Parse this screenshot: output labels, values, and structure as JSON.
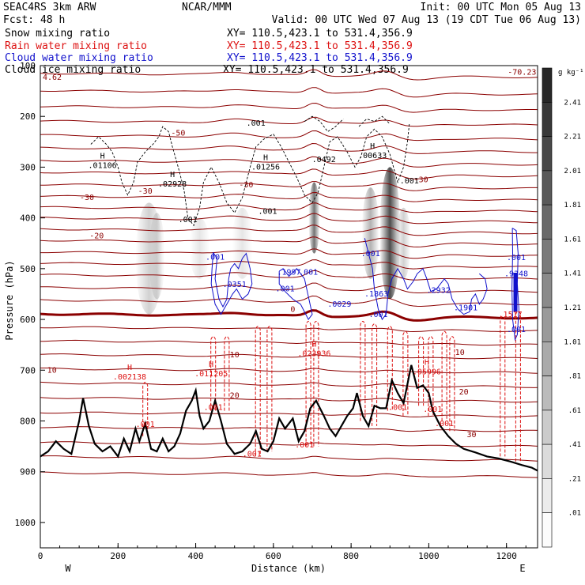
{
  "header": {
    "model": "SEAC4RS  3km ARW",
    "org": "NCAR/MMM",
    "init": "Init: 00 UTC Mon 05 Aug 13",
    "fcst": "Fcst:   48 h",
    "valid": "Valid: 00 UTC Wed 07 Aug 13 (19 CDT Tue 06 Aug 13)"
  },
  "fields": [
    {
      "name": "Snow mixing ratio",
      "xy": "XY= 110.5,423.1 to 531.4,356.9",
      "color": "#000000"
    },
    {
      "name": "Rain water mixing ratio",
      "xy": "XY= 110.5,423.1 to 531.4,356.9",
      "color": "#dd1111"
    },
    {
      "name": "Cloud water mixing ratio",
      "xy": "XY= 110.5,423.1 to 531.4,356.9",
      "color": "#1111cc"
    },
    {
      "name": "Cloud ice mixing ratio",
      "xy": "XY= 110.5,423.1 to 531.4,356.9",
      "color": "#000000"
    }
  ],
  "colors": {
    "temperature": "#8b0000",
    "freezing_level": "#8b0000",
    "rain": "#dd1111",
    "cloud_water": "#1111cc",
    "terrain": "#000000"
  },
  "chart_data": {
    "type": "cross-section",
    "xlabel": "Distance (km)",
    "ylabel": "Pressure (hPa)",
    "xlim": [
      0,
      1280
    ],
    "ylim": [
      1050,
      100
    ],
    "xticks": [
      "0",
      "200",
      "400",
      "600",
      "800",
      "1000",
      "1200"
    ],
    "yticks": [
      "100",
      "200",
      "300",
      "400",
      "500",
      "600",
      "700",
      "800",
      "900",
      "1000"
    ],
    "west_label": "W",
    "east_label": "E",
    "colorbar": {
      "unit": "g kg⁻¹",
      "labels": [
        "2.41",
        "2.21",
        "2.01",
        "1.81",
        "1.61",
        "1.41",
        "1.21",
        "1.01",
        ".81",
        ".61",
        ".41",
        ".21",
        ".01"
      ]
    },
    "temperature_isotherm_labels": [
      {
        "text": "-70.23",
        "x": 1240,
        "p": 118
      },
      {
        "text": "-50",
        "x": 355,
        "p": 238
      },
      {
        "text": "-30",
        "x": 120,
        "p": 365
      },
      {
        "text": "-30",
        "x": 270,
        "p": 352
      },
      {
        "text": "-30",
        "x": 530,
        "p": 340
      },
      {
        "text": "-30",
        "x": 980,
        "p": 330
      },
      {
        "text": "-20",
        "x": 145,
        "p": 440
      },
      {
        "text": "0",
        "x": 650,
        "p": 585
      },
      {
        "text": "10",
        "x": 30,
        "p": 705
      },
      {
        "text": "10",
        "x": 500,
        "p": 675
      },
      {
        "text": "10",
        "x": 1080,
        "p": 670
      },
      {
        "text": "20",
        "x": 500,
        "p": 755
      },
      {
        "text": "20",
        "x": 1090,
        "p": 748
      },
      {
        "text": "30",
        "x": 1110,
        "p": 832
      }
    ],
    "max_corner_label": "4.62",
    "snow_maxima": [
      {
        "value": ".01106",
        "x": 160,
        "p": 302
      },
      {
        "value": ".02928",
        "x": 340,
        "p": 338
      },
      {
        "value": ".01256",
        "x": 580,
        "p": 305
      },
      {
        "value": ".0492",
        "x": 730,
        "p": 290
      },
      {
        "value": ".00633",
        "x": 855,
        "p": 282
      },
      {
        "value": ".001",
        "x": 555,
        "p": 218
      },
      {
        "value": ".001",
        "x": 380,
        "p": 408
      },
      {
        "value": ".001",
        "x": 585,
        "p": 392
      },
      {
        "value": ".001",
        "x": 950,
        "p": 332
      }
    ],
    "cloud_water_maxima": [
      {
        "value": ".001",
        "x": 450,
        "p": 482
      },
      {
        "value": ".0351",
        "x": 500,
        "p": 536
      },
      {
        "value": ".1997",
        "x": 640,
        "p": 512
      },
      {
        "value": ".001",
        "x": 690,
        "p": 512
      },
      {
        "value": ".001",
        "x": 630,
        "p": 545
      },
      {
        "value": ".0029",
        "x": 770,
        "p": 575
      },
      {
        "value": ".001",
        "x": 850,
        "p": 475
      },
      {
        "value": ".1863",
        "x": 865,
        "p": 555
      },
      {
        "value": ".001",
        "x": 870,
        "p": 595
      },
      {
        "value": ".2932",
        "x": 1025,
        "p": 548
      },
      {
        "value": ".1901",
        "x": 1095,
        "p": 582
      },
      {
        "value": ".9348",
        "x": 1225,
        "p": 515
      },
      {
        "value": ".001",
        "x": 1225,
        "p": 483
      },
      {
        "value": ".001",
        "x": 1225,
        "p": 625
      }
    ],
    "rain_maxima": [
      {
        "value": ".002138",
        "x": 230,
        "p": 718
      },
      {
        "value": ".011205",
        "x": 440,
        "p": 712
      },
      {
        "value": ".023936",
        "x": 705,
        "p": 672
      },
      {
        "value": ".05996",
        "x": 995,
        "p": 708
      },
      {
        "value": ".001",
        "x": 445,
        "p": 778
      },
      {
        "value": ".001",
        "x": 270,
        "p": 812
      },
      {
        "value": ".001",
        "x": 545,
        "p": 870
      },
      {
        "value": ".001",
        "x": 680,
        "p": 852
      },
      {
        "value": ".001",
        "x": 920,
        "p": 778
      },
      {
        "value": ".001",
        "x": 1010,
        "p": 782
      },
      {
        "value": ".001",
        "x": 1040,
        "p": 810
      },
      {
        "value": ".1517",
        "x": 1210,
        "p": 595
      }
    ],
    "terrain_profile": [
      [
        0,
        870
      ],
      [
        20,
        860
      ],
      [
        40,
        840
      ],
      [
        60,
        855
      ],
      [
        80,
        865
      ],
      [
        100,
        800
      ],
      [
        110,
        755
      ],
      [
        125,
        810
      ],
      [
        140,
        845
      ],
      [
        160,
        860
      ],
      [
        180,
        850
      ],
      [
        200,
        870
      ],
      [
        215,
        835
      ],
      [
        230,
        860
      ],
      [
        245,
        815
      ],
      [
        255,
        840
      ],
      [
        270,
        805
      ],
      [
        285,
        855
      ],
      [
        300,
        860
      ],
      [
        315,
        835
      ],
      [
        330,
        860
      ],
      [
        345,
        850
      ],
      [
        360,
        825
      ],
      [
        375,
        780
      ],
      [
        390,
        760
      ],
      [
        400,
        740
      ],
      [
        410,
        790
      ],
      [
        420,
        815
      ],
      [
        435,
        800
      ],
      [
        450,
        760
      ],
      [
        465,
        800
      ],
      [
        480,
        845
      ],
      [
        500,
        865
      ],
      [
        520,
        860
      ],
      [
        540,
        845
      ],
      [
        555,
        820
      ],
      [
        570,
        855
      ],
      [
        585,
        860
      ],
      [
        600,
        840
      ],
      [
        615,
        795
      ],
      [
        630,
        815
      ],
      [
        650,
        795
      ],
      [
        665,
        840
      ],
      [
        680,
        820
      ],
      [
        695,
        775
      ],
      [
        710,
        760
      ],
      [
        730,
        790
      ],
      [
        745,
        815
      ],
      [
        760,
        830
      ],
      [
        775,
        810
      ],
      [
        790,
        790
      ],
      [
        805,
        775
      ],
      [
        815,
        745
      ],
      [
        830,
        790
      ],
      [
        845,
        810
      ],
      [
        860,
        770
      ],
      [
        875,
        775
      ],
      [
        890,
        775
      ],
      [
        905,
        720
      ],
      [
        920,
        745
      ],
      [
        935,
        765
      ],
      [
        955,
        690
      ],
      [
        970,
        735
      ],
      [
        985,
        730
      ],
      [
        1000,
        745
      ],
      [
        1010,
        780
      ],
      [
        1030,
        810
      ],
      [
        1050,
        830
      ],
      [
        1070,
        845
      ],
      [
        1090,
        855
      ],
      [
        1120,
        862
      ],
      [
        1150,
        870
      ],
      [
        1180,
        874
      ],
      [
        1210,
        880
      ],
      [
        1240,
        887
      ],
      [
        1265,
        892
      ],
      [
        1280,
        898
      ]
    ]
  }
}
